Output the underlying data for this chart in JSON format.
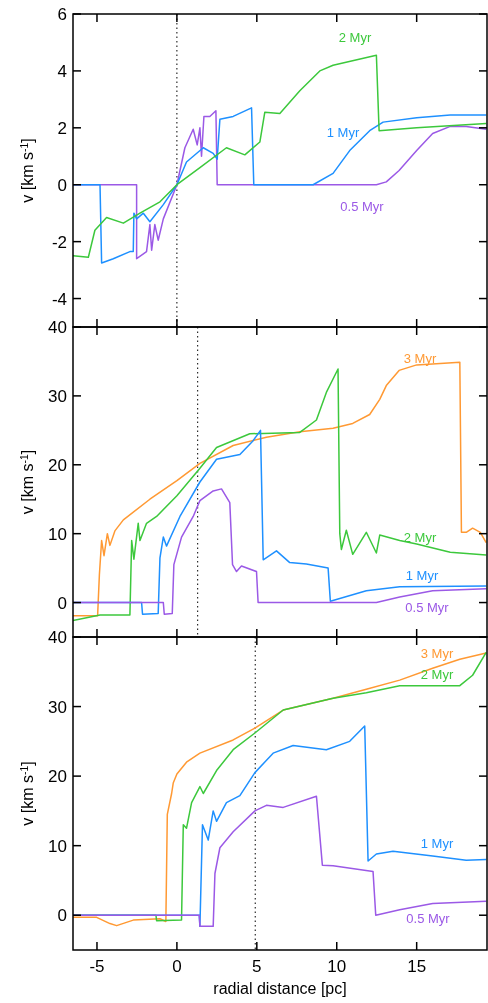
{
  "chart_data": [
    {
      "type": "line",
      "ylabel": "v [km s$^{-1}$]",
      "xlim": [
        -6.5,
        19.4
      ],
      "ylim": [
        -5,
        6
      ],
      "xticks": [
        -5,
        0,
        5,
        10,
        15
      ],
      "yticks": [
        -4,
        -2,
        0,
        2,
        4,
        6
      ],
      "tick_labels": "y",
      "grid": false,
      "ref_lines": [
        {
          "axis": "x",
          "value": 0,
          "line_style": "dotted",
          "color": "#000000"
        }
      ],
      "series": [
        {
          "name": "0.5 Myr",
          "color": "#9b59e6",
          "x": [
            -6.5,
            -2.52,
            -2.52,
            -1.9,
            -1.69,
            -1.58,
            -1.38,
            -1.17,
            -0.85,
            0,
            0.5,
            1.02,
            1.27,
            1.44,
            1.54,
            1.69,
            2.06,
            2.44,
            2.52,
            12.48,
            13.1,
            13.9,
            15.0,
            16.0,
            17.1,
            18.1,
            19.35
          ],
          "values": [
            0,
            0,
            -2.6,
            -2.35,
            -1.4,
            -2.3,
            -1.4,
            -1.95,
            -1.2,
            0,
            1.3,
            1.95,
            1.4,
            2.0,
            1.0,
            2.4,
            2.4,
            2.6,
            0,
            0,
            0.1,
            0.5,
            1.2,
            1.8,
            2.05,
            2.05,
            1.95
          ]
        },
        {
          "name": "1 Myr",
          "color": "#1e90ff",
          "x": [
            -6.5,
            -4.81,
            -4.71,
            -3.98,
            -2.94,
            -2.73,
            -2.69,
            -2.52,
            -2.1,
            -1.69,
            -0.85,
            0,
            0.6,
            1.65,
            2.27,
            2.52,
            2.69,
            3.52,
            4.67,
            4.81,
            8.52,
            9.77,
            10.81,
            12.06,
            12.9,
            15.0,
            17.1,
            19.35
          ],
          "values": [
            0,
            0,
            -2.75,
            -2.6,
            -2.35,
            -2.35,
            -1.0,
            -1.2,
            -1.0,
            -1.3,
            -0.7,
            0,
            0.8,
            1.3,
            1.1,
            0.9,
            2.3,
            2.4,
            2.7,
            0,
            0,
            0.4,
            1.2,
            1.9,
            2.2,
            2.35,
            2.45,
            2.45
          ]
        },
        {
          "name": "2 Myr",
          "color": "#3cc83c",
          "x": [
            -6.5,
            -5.54,
            -5.13,
            -4.4,
            -3.35,
            -2.31,
            -1.06,
            0,
            1.44,
            3.1,
            4.25,
            5.19,
            5.5,
            6.44,
            7.69,
            8.94,
            9.77,
            12.48,
            12.65,
            15.0,
            19.35
          ],
          "values": [
            -2.5,
            -2.55,
            -1.6,
            -1.15,
            -1.35,
            -1.0,
            -0.6,
            0,
            0.6,
            1.3,
            1.05,
            1.5,
            2.55,
            2.5,
            3.3,
            4.0,
            4.2,
            4.55,
            1.9,
            2.0,
            2.15
          ]
        }
      ]
    },
    {
      "type": "line",
      "ylabel": "v [km s$^{-1}$]",
      "xlim": [
        -6.5,
        19.4
      ],
      "ylim": [
        -5,
        40
      ],
      "xticks": [
        -5,
        0,
        5,
        10,
        15
      ],
      "yticks": [
        0,
        10,
        20,
        30,
        40
      ],
      "tick_labels": "y",
      "grid": false,
      "ref_lines": [
        {
          "axis": "x",
          "value": 1.3,
          "line_style": "dotted",
          "color": "#000000"
        }
      ],
      "series": [
        {
          "name": "3 Myr",
          "color": "#ff9933",
          "x": [
            -6.5,
            -4.96,
            -4.85,
            -4.71,
            -4.56,
            -4.35,
            -4.19,
            -3.88,
            -3.35,
            -1.69,
            0,
            1.44,
            3.52,
            5.6,
            7.69,
            9.77,
            11.0,
            12.06,
            12.69,
            13.1,
            13.9,
            15.0,
            17.7,
            17.8,
            18.1,
            18.5,
            18.98,
            19.35
          ],
          "values": [
            -1.9,
            -1.9,
            4,
            9.0,
            6.8,
            10,
            8.3,
            10.4,
            12.0,
            15.0,
            17.7,
            20.2,
            22.8,
            24.0,
            24.8,
            25.3,
            26.0,
            27.3,
            29.5,
            31.5,
            33.7,
            34.5,
            34.9,
            10.2,
            10.2,
            10.8,
            10.2,
            8.7
          ]
        },
        {
          "name": "2 Myr",
          "color": "#3cc83c",
          "x": [
            -6.5,
            -4.81,
            -2.94,
            -2.83,
            -2.69,
            -2.42,
            -2.31,
            -1.9,
            -1.27,
            0,
            1.44,
            2.48,
            4.56,
            7.69,
            8.73,
            9.35,
            10.08,
            10.19,
            10.29,
            10.6,
            11.0,
            11.85,
            12.48,
            12.69,
            13.94,
            15.0,
            17.1,
            19.35
          ],
          "values": [
            -2.6,
            -1.8,
            -1.8,
            9.0,
            6.3,
            11.5,
            9.0,
            11.5,
            12.5,
            15.5,
            19.5,
            22.5,
            24.5,
            24.7,
            26.5,
            30.5,
            33.9,
            10,
            7.7,
            10.5,
            7.0,
            10.2,
            7.2,
            9.8,
            9.0,
            8.5,
            7.3,
            6.9
          ]
        },
        {
          "name": "1 Myr",
          "color": "#1e90ff",
          "x": [
            -6.5,
            -2.21,
            -2.15,
            -1.17,
            -1.06,
            -0.85,
            -0.65,
            0.19,
            1.44,
            2.48,
            3.94,
            4.77,
            5.23,
            5.4,
            6.23,
            7.06,
            8.1,
            9.46,
            9.6,
            11.85,
            13.94,
            19.35
          ],
          "values": [
            0,
            0,
            -1.7,
            -1.6,
            6.5,
            9.5,
            8.2,
            12.5,
            17.5,
            20.8,
            21.5,
            23.5,
            25.0,
            6.2,
            7.5,
            5.8,
            5.6,
            5.0,
            0.2,
            1.7,
            2.3,
            2.4
          ]
        },
        {
          "name": "0.5 Myr",
          "color": "#9b59e6",
          "x": [
            -6.5,
            -0.85,
            -0.79,
            -0.29,
            -0.19,
            0.29,
            1.02,
            1.44,
            2.27,
            2.79,
            3.31,
            3.48,
            3.73,
            4.04,
            4.98,
            5.08,
            12.48,
            13.94,
            16.0,
            19.35
          ],
          "values": [
            0,
            0,
            -1.7,
            -1.6,
            5.5,
            9.5,
            12.5,
            14.8,
            16.2,
            16.5,
            14.5,
            5.5,
            4.5,
            5.3,
            4.5,
            0,
            0,
            0.8,
            1.7,
            2.0
          ]
        }
      ]
    },
    {
      "type": "line",
      "xlabel": "radial distance [pc]",
      "ylabel": "v [km s$^{-1}$]",
      "xlim": [
        -6.5,
        19.4
      ],
      "ylim": [
        -5,
        40
      ],
      "xticks": [
        -5,
        0,
        5,
        10,
        15
      ],
      "yticks": [
        0,
        10,
        20,
        30,
        40
      ],
      "grid": false,
      "ref_lines": [
        {
          "axis": "x",
          "value": 4.9,
          "line_style": "dotted",
          "color": "#000000"
        }
      ],
      "series": [
        {
          "name": "3 Myr",
          "color": "#ff9933",
          "x": [
            -6.5,
            -5.02,
            -4.19,
            -3.77,
            -2.73,
            -1.06,
            -0.69,
            -0.6,
            -0.33,
            -0.23,
            0,
            0.6,
            1.44,
            3.52,
            4.88,
            6.65,
            9.77,
            11.85,
            13.94,
            16.0,
            17.7,
            19.35
          ],
          "values": [
            -0.3,
            -0.3,
            -1.2,
            -1.5,
            -0.7,
            -0.5,
            -0.9,
            14.5,
            17.5,
            19,
            20.3,
            22,
            23.3,
            25.2,
            26.9,
            29.5,
            31.2,
            32.5,
            33.8,
            35.5,
            36.8,
            37.7
          ]
        },
        {
          "name": "2 Myr",
          "color": "#3cc83c",
          "x": [
            -6.5,
            -1.31,
            -1.27,
            0.29,
            0.4,
            0.6,
            0.92,
            1.44,
            1.65,
            2.48,
            3.52,
            4.88,
            6.65,
            9.77,
            11.85,
            13.94,
            16.0,
            17.7,
            18.5,
            19.35
          ],
          "values": [
            0,
            0,
            -0.8,
            -0.7,
            13,
            12.5,
            16.2,
            18.5,
            17.5,
            20.8,
            23.8,
            26.2,
            29.5,
            31.2,
            32.0,
            33.0,
            33.0,
            33.0,
            34.5,
            37.8
          ]
        },
        {
          "name": "1 Myr",
          "color": "#1e90ff",
          "x": [
            -6.5,
            1.4,
            1.44,
            1.6,
            1.96,
            2.27,
            2.48,
            3.1,
            3.94,
            4.88,
            6.02,
            7.27,
            9.35,
            10.81,
            11.75,
            11.96,
            12.48,
            13.52,
            16.0,
            18.1,
            19.35
          ],
          "values": [
            0,
            0,
            -1.6,
            13,
            10.8,
            15,
            13.5,
            16.2,
            17.2,
            20.5,
            23.3,
            24.4,
            23.8,
            25.0,
            27.2,
            7.8,
            8.8,
            9.2,
            8.5,
            7.9,
            8.0
          ]
        },
        {
          "name": "0.5 Myr",
          "color": "#9b59e6",
          "x": [
            -6.5,
            1.4,
            1.44,
            2.27,
            2.38,
            2.69,
            3.52,
            4.88,
            5.6,
            6.65,
            8.73,
            9.1,
            9.77,
            12.27,
            12.44,
            13.94,
            16.0,
            19.35
          ],
          "values": [
            0,
            0,
            -1.6,
            -1.6,
            6.0,
            9.7,
            12.0,
            15.0,
            15.8,
            15.5,
            17.1,
            7.2,
            7.1,
            6.3,
            0,
            0.8,
            1.7,
            2.0
          ]
        }
      ]
    }
  ]
}
